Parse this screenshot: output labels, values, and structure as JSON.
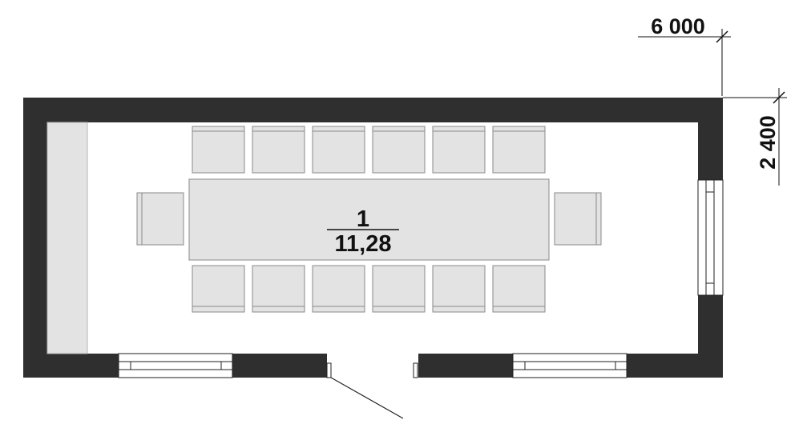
{
  "dimensions": {
    "width_label": "6 000",
    "depth_label": "2 400"
  },
  "room": {
    "number": "1",
    "area": "11,28"
  },
  "furniture": {
    "chairs_top_row": 6,
    "chairs_bottom_row": 6,
    "chairs_ends": 2
  },
  "colors": {
    "wall": "#2f2f2f",
    "furniture_fill": "#e3e3e3",
    "furniture_stroke": "#8a8a8a",
    "text": "#111111"
  }
}
